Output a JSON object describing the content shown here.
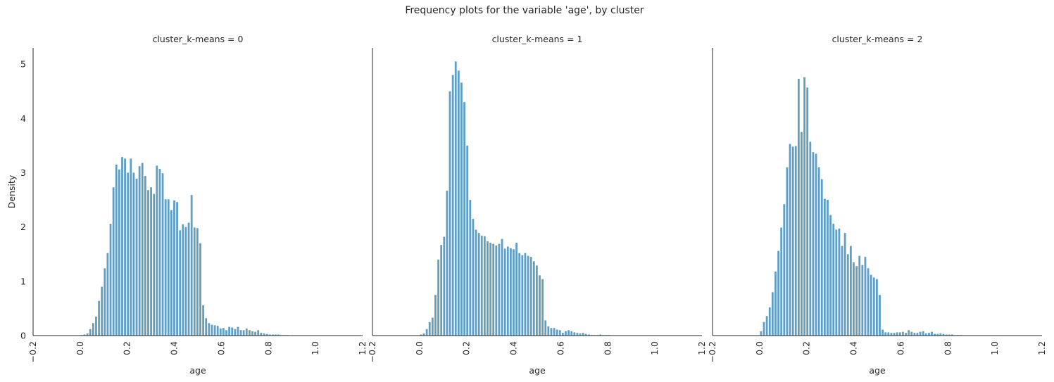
{
  "title": "Frequency plots for the variable 'age', by cluster",
  "colors": {
    "bar": "#5f9fc6",
    "axis": "#262626"
  },
  "chart_data": [
    {
      "type": "bar",
      "panel_title": "cluster_k-means = 0",
      "xlabel": "age",
      "ylabel": "Density",
      "xlim": [
        -0.2,
        1.2
      ],
      "ylim": [
        0,
        5.3
      ],
      "xticks": [
        "-0.2",
        "0.0",
        "0.2",
        "0.4",
        "0.6",
        "0.8",
        "1.0",
        "1.2"
      ],
      "yticks": [
        "0",
        "1",
        "2",
        "3",
        "4",
        "5"
      ],
      "bin_start": 0.0,
      "bin_width": 0.0123,
      "values": [
        0.01,
        0.02,
        0.04,
        0.12,
        0.23,
        0.35,
        0.64,
        0.9,
        1.24,
        1.52,
        2.06,
        2.73,
        3.15,
        3.06,
        3.29,
        3.26,
        3.0,
        3.26,
        3.0,
        2.89,
        3.12,
        3.18,
        2.94,
        2.68,
        2.73,
        2.61,
        3.13,
        3.07,
        2.99,
        2.51,
        2.51,
        2.31,
        2.49,
        2.46,
        1.94,
        2.05,
        2.0,
        2.08,
        2.59,
        1.99,
        1.98,
        1.7,
        0.56,
        0.32,
        0.23,
        0.2,
        0.19,
        0.18,
        0.13,
        0.14,
        0.1,
        0.16,
        0.15,
        0.12,
        0.16,
        0.1,
        0.1,
        0.13,
        0.1,
        0.08,
        0.07,
        0.1,
        0.05,
        0.04,
        0.03,
        0.02,
        0.02,
        0.02,
        0.02,
        0.01,
        0.01,
        0.01
      ]
    },
    {
      "type": "bar",
      "panel_title": "cluster_k-means = 1",
      "xlabel": "age",
      "ylabel": "",
      "xlim": [
        -0.2,
        1.2
      ],
      "ylim": [
        0,
        5.3
      ],
      "xticks": [
        "-0.2",
        "0.0",
        "0.2",
        "0.4",
        "0.6",
        "0.8",
        "1.0",
        "1.2"
      ],
      "yticks": [
        "0",
        "1",
        "2",
        "3",
        "4",
        "5"
      ],
      "bin_start": 0.0,
      "bin_width": 0.0123,
      "values": [
        0.02,
        0.04,
        0.12,
        0.25,
        0.33,
        0.75,
        1.4,
        1.67,
        1.82,
        2.67,
        4.5,
        4.8,
        5.05,
        4.88,
        4.66,
        4.3,
        3.5,
        2.5,
        2.15,
        1.95,
        1.89,
        1.84,
        1.83,
        1.74,
        1.71,
        1.69,
        1.66,
        1.69,
        1.78,
        1.6,
        1.64,
        1.61,
        1.59,
        1.71,
        1.52,
        1.48,
        1.52,
        1.47,
        1.45,
        1.37,
        1.29,
        1.11,
        1.04,
        0.28,
        0.17,
        0.14,
        0.14,
        0.11,
        0.1,
        0.05,
        0.08,
        0.1,
        0.08,
        0.06,
        0.05,
        0.04,
        0.05,
        0.03,
        0.02,
        0.01,
        0.01,
        0.01,
        0.02,
        0.01,
        0.01,
        0.01
      ]
    },
    {
      "type": "bar",
      "panel_title": "cluster_k-means = 2",
      "xlabel": "age",
      "ylabel": "",
      "xlim": [
        -0.2,
        1.2
      ],
      "ylim": [
        0,
        5.3
      ],
      "xticks": [
        "-0.2",
        "0.0",
        "0.2",
        "0.4",
        "0.6",
        "0.8",
        "1.0",
        "1.2"
      ],
      "yticks": [
        "0",
        "1",
        "2",
        "3",
        "4",
        "5"
      ],
      "bin_start": 0.0,
      "bin_width": 0.0123,
      "values": [
        0.08,
        0.25,
        0.36,
        0.52,
        0.8,
        1.18,
        1.56,
        1.99,
        2.42,
        3.1,
        3.53,
        3.48,
        3.49,
        4.73,
        3.75,
        4.76,
        4.57,
        3.57,
        3.38,
        3.35,
        3.1,
        2.88,
        2.52,
        2.5,
        2.22,
        2.06,
        1.95,
        1.97,
        1.65,
        1.89,
        1.5,
        1.65,
        1.35,
        1.28,
        1.47,
        1.3,
        1.45,
        1.24,
        1.12,
        1.07,
        1.04,
        0.75,
        0.11,
        0.06,
        0.06,
        0.05,
        0.05,
        0.06,
        0.06,
        0.07,
        0.05,
        0.1,
        0.07,
        0.05,
        0.05,
        0.07,
        0.08,
        0.04,
        0.05,
        0.07,
        0.03,
        0.03,
        0.04,
        0.03,
        0.02,
        0.02,
        0.02,
        0.01,
        0.01,
        0.01
      ]
    }
  ]
}
